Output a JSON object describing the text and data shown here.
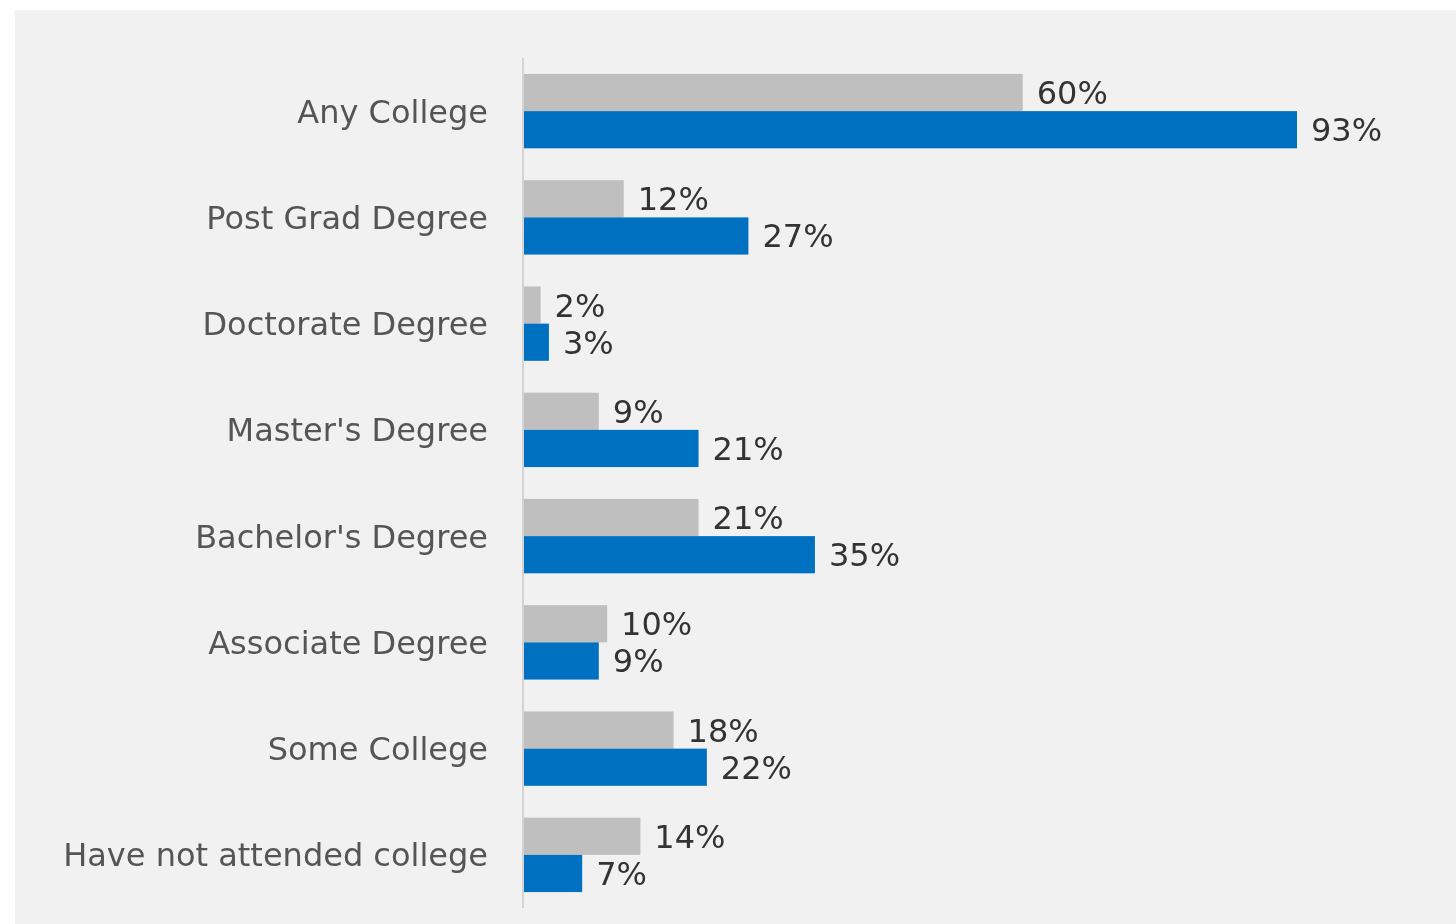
{
  "chart_data": {
    "type": "bar",
    "orientation": "horizontal",
    "categories": [
      "Any College",
      "Post Grad Degree",
      "Doctorate Degree",
      "Master's Degree",
      "Bachelor's Degree",
      "Associate Degree",
      "Some College",
      "Have not attended college"
    ],
    "series": [
      {
        "color": "#bfbfbf",
        "values": [
          60,
          12,
          2,
          9,
          21,
          10,
          18,
          14
        ],
        "value_labels": [
          "60%",
          "12%",
          "2%",
          "9%",
          "21%",
          "10%",
          "18%",
          "14%"
        ]
      },
      {
        "color": "#0070c0",
        "values": [
          93,
          27,
          3,
          21,
          35,
          9,
          22,
          7
        ],
        "value_labels": [
          "93%",
          "27%",
          "3%",
          "21%",
          "35%",
          "9%",
          "22%",
          "7%"
        ]
      }
    ]
  }
}
